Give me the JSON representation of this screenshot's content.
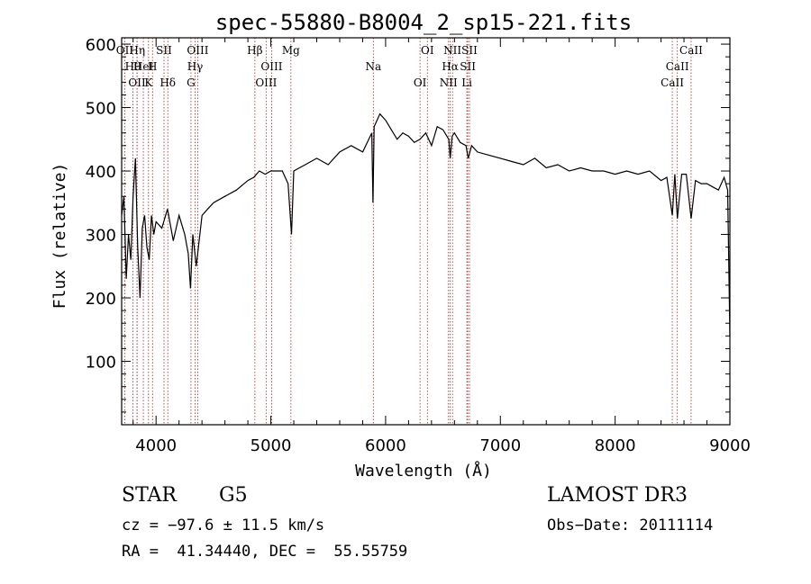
{
  "chart_data": {
    "type": "line",
    "title": "spec-55880-B8004_2_sp15-221.fits",
    "xlabel": "Wavelength (Å)",
    "ylabel": "Flux (relative)",
    "xlim": [
      3700,
      9000
    ],
    "ylim": [
      0,
      610
    ],
    "xticks": [
      4000,
      5000,
      6000,
      7000,
      8000,
      9000
    ],
    "yticks": [
      100,
      200,
      300,
      400,
      500,
      600
    ],
    "grid": false,
    "series": [
      {
        "x": [
          3700,
          3720,
          3740,
          3760,
          3780,
          3800,
          3820,
          3840,
          3860,
          3880,
          3900,
          3920,
          3940,
          3960,
          3980,
          4000,
          4050,
          4100,
          4150,
          4200,
          4250,
          4280,
          4300,
          4320,
          4350,
          4400,
          4450,
          4500,
          4600,
          4700,
          4800,
          4850,
          4900,
          4950,
          5000,
          5100,
          5150,
          5180,
          5200,
          5300,
          5400,
          5500,
          5600,
          5700,
          5800,
          5880,
          5890,
          5900,
          5950,
          6000,
          6050,
          6100,
          6150,
          6200,
          6250,
          6300,
          6350,
          6400,
          6450,
          6500,
          6550,
          6563,
          6580,
          6600,
          6650,
          6700,
          6720,
          6750,
          6800,
          6900,
          7000,
          7100,
          7200,
          7300,
          7400,
          7500,
          7600,
          7700,
          7800,
          7900,
          8000,
          8100,
          8200,
          8300,
          8400,
          8450,
          8498,
          8520,
          8542,
          8580,
          8620,
          8662,
          8700,
          8750,
          8800,
          8850,
          8900,
          8950,
          8980,
          9000
        ],
        "y": [
          330,
          360,
          230,
          300,
          260,
          360,
          420,
          280,
          200,
          310,
          330,
          280,
          260,
          330,
          300,
          320,
          310,
          340,
          290,
          330,
          300,
          270,
          215,
          300,
          250,
          330,
          340,
          350,
          360,
          370,
          385,
          390,
          400,
          395,
          400,
          400,
          380,
          300,
          400,
          410,
          420,
          410,
          430,
          440,
          430,
          460,
          350,
          470,
          490,
          480,
          465,
          450,
          460,
          455,
          445,
          450,
          460,
          440,
          470,
          465,
          450,
          420,
          455,
          460,
          445,
          440,
          420,
          440,
          430,
          425,
          420,
          415,
          410,
          420,
          405,
          410,
          400,
          405,
          400,
          400,
          395,
          400,
          395,
          400,
          385,
          390,
          330,
          395,
          325,
          395,
          395,
          325,
          385,
          380,
          380,
          375,
          370,
          390,
          370,
          140
        ]
      }
    ],
    "spectral_lines": [
      {
        "name": "OII",
        "x": 3727
      },
      {
        "name": "Hθ",
        "x": 3798
      },
      {
        "name": "OII",
        "x": 3834
      },
      {
        "name": "Hη",
        "x": 3835
      },
      {
        "name": "HeI",
        "x": 3889
      },
      {
        "name": "K",
        "x": 3934
      },
      {
        "name": "SII",
        "x": 4069
      },
      {
        "name": "H",
        "x": 3969
      },
      {
        "name": "Hδ",
        "x": 4102
      },
      {
        "name": "OIII",
        "x": 4363
      },
      {
        "name": "Hγ",
        "x": 4340
      },
      {
        "name": "G",
        "x": 4304
      },
      {
        "name": "Hβ",
        "x": 4861
      },
      {
        "name": "OIII",
        "x": 5007
      },
      {
        "name": "OIII",
        "x": 4959
      },
      {
        "name": "Mg",
        "x": 5175
      },
      {
        "name": "Na",
        "x": 5893
      },
      {
        "name": "OI",
        "x": 6300
      },
      {
        "name": "OI",
        "x": 6364
      },
      {
        "name": "Hα",
        "x": 6563
      },
      {
        "name": "NII",
        "x": 6548
      },
      {
        "name": "NII",
        "x": 6583
      },
      {
        "name": "SII",
        "x": 6716
      },
      {
        "name": "Li",
        "x": 6708
      },
      {
        "name": "SII",
        "x": 6731
      },
      {
        "name": "CaII",
        "x": 8542
      },
      {
        "name": "CaII",
        "x": 8498
      },
      {
        "name": "CaII",
        "x": 8662
      }
    ]
  },
  "info": {
    "object_class": "STAR",
    "subclass": "G5",
    "survey": "LAMOST DR3",
    "cz": "cz = −97.6 ± 11.5 km/s",
    "obs_date": "Obs−Date: 20111114",
    "coords": "RA =  41.34440, DEC =  55.55759"
  },
  "colors": {
    "spectrum": "#000000",
    "line_marker": "#b22222",
    "axes": "#000000"
  }
}
